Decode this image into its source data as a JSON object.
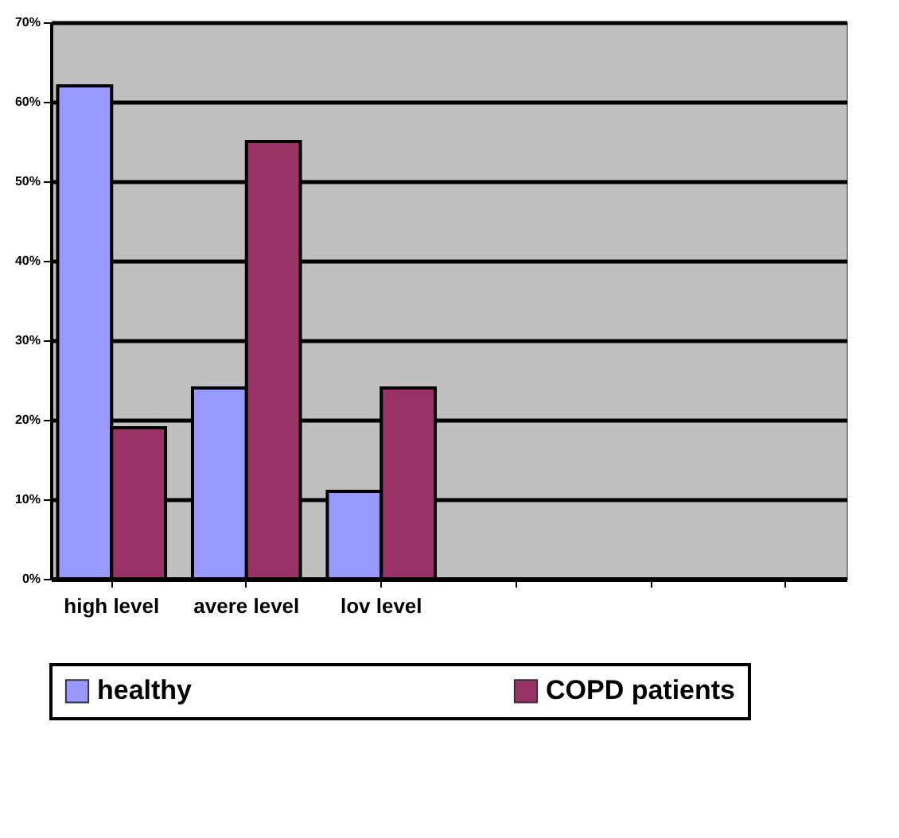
{
  "chart_data": {
    "type": "bar",
    "categories": [
      "high level",
      "avere level",
      "lov level",
      null,
      null,
      null
    ],
    "series": [
      {
        "name": "healthy",
        "color": "#9999ff",
        "values": [
          62,
          24,
          11,
          null,
          null,
          null
        ]
      },
      {
        "name": "COPD patients",
        "color": "#993366",
        "values": [
          19,
          55,
          24,
          null,
          null,
          null
        ]
      }
    ],
    "ylim": [
      0,
      70
    ],
    "yticks": [
      {
        "value": 0,
        "label": "0%"
      },
      {
        "value": 10,
        "label": "10%"
      },
      {
        "value": 20,
        "label": "20%"
      },
      {
        "value": 30,
        "label": "30%"
      },
      {
        "value": 40,
        "label": "40%"
      },
      {
        "value": 50,
        "label": "50%"
      },
      {
        "value": 60,
        "label": "60%"
      },
      {
        "value": 70,
        "label": "70%"
      }
    ],
    "grid": "y",
    "legend": "bottom"
  }
}
